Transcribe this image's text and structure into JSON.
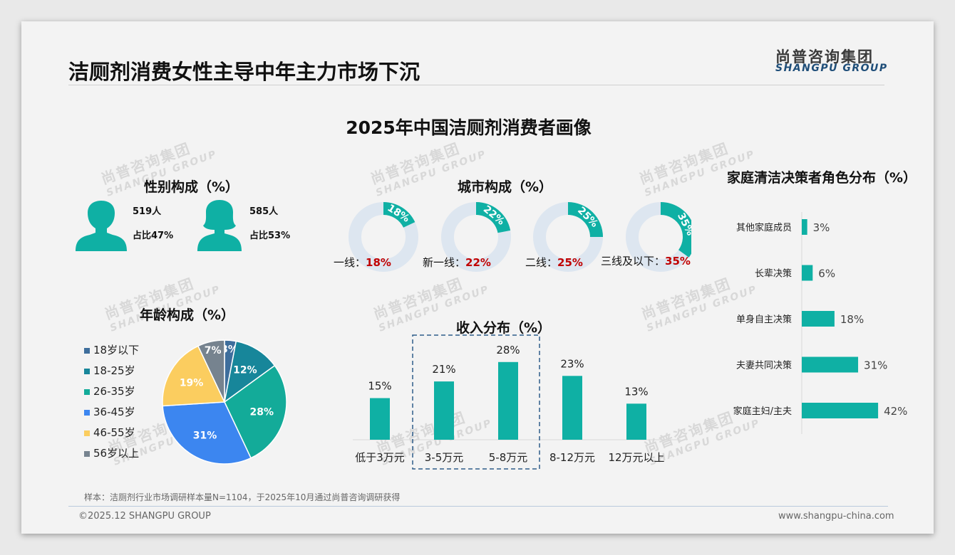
{
  "header": {
    "title": "洁厕剂消费女性主导中年主力市场下沉",
    "logo_cn": "尚普咨询集团",
    "logo_en": "SHANGPU GROUP"
  },
  "subtitle": "2025年中国洁厕剂消费者画像",
  "watermark": {
    "cn": "尚普咨询集团",
    "en": "SHANGPU GROUP"
  },
  "colors": {
    "teal": "#0fb0a4",
    "donut_track": "#dde6f0",
    "highlight_red": "#c00000",
    "dashed_box": "#2e5c8a"
  },
  "gender": {
    "title": "性别构成（%）",
    "male": {
      "count": "519人",
      "share": "占比47%",
      "icon": "male-person-icon"
    },
    "female": {
      "count": "585人",
      "share": "占比53%",
      "icon": "female-person-icon"
    }
  },
  "city": {
    "title": "城市构成（%）",
    "items": [
      {
        "name": "一线：",
        "value": 18,
        "pct_text": "18%"
      },
      {
        "name": "新一线：",
        "value": 22,
        "pct_text": "22%"
      },
      {
        "name": "二线：",
        "value": 25,
        "pct_text": "25%"
      },
      {
        "name": "三线及以下：",
        "value": 35,
        "pct_text": "35%"
      }
    ]
  },
  "footer": {
    "note": "样本：洁厕剂行业市场调研样本量N=1104，于2025年10月通过尚普咨询调研获得",
    "copyright": "©2025.12 SHANGPU GROUP",
    "website": "www.shangpu-china.com"
  },
  "chart_data": [
    {
      "type": "pie",
      "title": "年龄构成（%）",
      "labels": [
        "18岁以下",
        "18-25岁",
        "26-35岁",
        "36-45岁",
        "46-55岁",
        "56岁以上"
      ],
      "values": [
        3,
        12,
        28,
        31,
        19,
        7
      ],
      "colors": [
        "#3e6e9c",
        "#17869a",
        "#13ab99",
        "#3c86f0",
        "#fbcd5f",
        "#76838f"
      ],
      "legend_position": "left"
    },
    {
      "type": "bar",
      "title": "收入分布（%）",
      "categories": [
        "低于3万元",
        "3-5万元",
        "5-8万元",
        "8-12万元",
        "12万元以上"
      ],
      "values": [
        15,
        21,
        28,
        23,
        13
      ],
      "highlighted_categories": [
        "3-5万元",
        "5-8万元"
      ],
      "grid": false
    },
    {
      "type": "bar",
      "orientation": "horizontal",
      "title": "家庭清洁决策者角色分布（%）",
      "categories": [
        "其他家庭成员",
        "长辈决策",
        "单身自主决策",
        "夫妻共同决策",
        "家庭主妇/主夫"
      ],
      "values": [
        3,
        6,
        18,
        31,
        42
      ],
      "grid": false
    }
  ]
}
